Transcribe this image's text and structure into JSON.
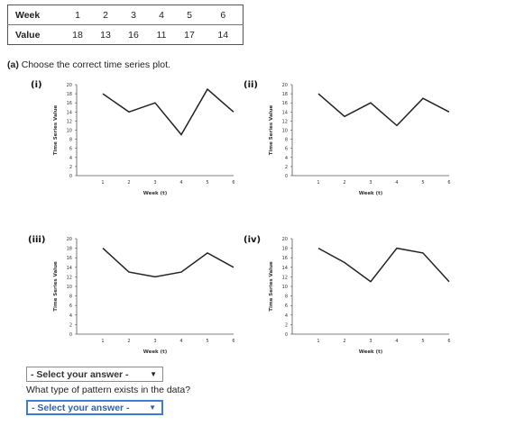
{
  "table": {
    "rows": [
      {
        "label": "Week",
        "values": [
          "1",
          "2",
          "3",
          "4",
          "5",
          "6"
        ]
      },
      {
        "label": "Value",
        "values": [
          "18",
          "13",
          "16",
          "11",
          "17",
          "14"
        ]
      }
    ]
  },
  "question_a": {
    "letter": "(a)",
    "text": " Choose the correct time series plot."
  },
  "options": [
    {
      "label": "(i)"
    },
    {
      "label": "(ii)"
    },
    {
      "label": "(iii)"
    },
    {
      "label": "(iv)"
    }
  ],
  "chart_data": [
    {
      "type": "line",
      "title": "",
      "xlabel": "Week (t)",
      "ylabel": "Time Series Value",
      "x": [
        1,
        2,
        3,
        4,
        5,
        6
      ],
      "y": [
        18,
        14,
        16,
        9,
        19,
        14
      ],
      "xlim": [
        0,
        6
      ],
      "ylim": [
        0,
        20
      ],
      "xticks": [
        "1",
        "2",
        "3",
        "4",
        "5",
        "6"
      ],
      "yticks": [
        "0",
        "2",
        "4",
        "6",
        "8",
        "10",
        "12",
        "14",
        "16",
        "18",
        "20"
      ],
      "grid": false
    },
    {
      "type": "line",
      "title": "",
      "xlabel": "Week (t)",
      "ylabel": "Time Series Value",
      "x": [
        1,
        2,
        3,
        4,
        5,
        6
      ],
      "y": [
        18,
        13,
        16,
        11,
        17,
        14
      ],
      "xlim": [
        0,
        6
      ],
      "ylim": [
        0,
        20
      ],
      "xticks": [
        "1",
        "2",
        "3",
        "4",
        "5",
        "6"
      ],
      "yticks": [
        "0",
        "2",
        "4",
        "6",
        "8",
        "10",
        "12",
        "14",
        "16",
        "18",
        "20"
      ],
      "grid": false
    },
    {
      "type": "line",
      "title": "",
      "xlabel": "Week (t)",
      "ylabel": "Time Series Value",
      "x": [
        1,
        2,
        3,
        4,
        5,
        6
      ],
      "y": [
        18,
        13,
        12,
        13,
        17,
        14
      ],
      "xlim": [
        0,
        6
      ],
      "ylim": [
        0,
        20
      ],
      "xticks": [
        "1",
        "2",
        "3",
        "4",
        "5",
        "6"
      ],
      "yticks": [
        "0",
        "2",
        "4",
        "6",
        "8",
        "10",
        "12",
        "14",
        "16",
        "18",
        "20"
      ],
      "grid": false
    },
    {
      "type": "line",
      "title": "",
      "xlabel": "Week (t)",
      "ylabel": "Time Series Value",
      "x": [
        1,
        2,
        3,
        4,
        5,
        6
      ],
      "y": [
        18,
        15,
        11,
        18,
        17,
        11
      ],
      "xlim": [
        0,
        6
      ],
      "ylim": [
        0,
        20
      ],
      "xticks": [
        "1",
        "2",
        "3",
        "4",
        "5",
        "6"
      ],
      "yticks": [
        "0",
        "2",
        "4",
        "6",
        "8",
        "10",
        "12",
        "14",
        "16",
        "18",
        "20"
      ],
      "grid": false
    }
  ],
  "select_plot": {
    "value": "- Select your answer -",
    "arrow": "▼"
  },
  "question_pattern": {
    "text": "What type of pattern exists in the data?"
  },
  "select_pattern": {
    "value": "- Select your answer -",
    "arrow": "▼"
  },
  "colors": {
    "line": "#222222",
    "axis": "#555555",
    "focus": "#3b7dd8"
  }
}
